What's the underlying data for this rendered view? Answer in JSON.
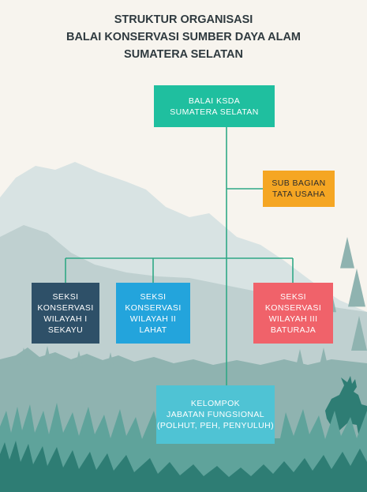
{
  "title": {
    "line1": "STRUKTUR ORGANISASI",
    "line2": "BALAI KONSERVASI SUMBER DAYA ALAM",
    "line3": "SUMATERA SELATAN"
  },
  "nodes": {
    "head": {
      "lines": [
        "BALAI KSDA",
        "SUMATERA SELATAN"
      ],
      "color": "#1fbf9f"
    },
    "sub_bagian": {
      "lines": [
        "SUB BAGIAN",
        "TATA USAHA"
      ],
      "color": "#f5a623"
    },
    "seksi_1": {
      "lines": [
        "SEKSI",
        "KONSERVASI",
        "WILAYAH I",
        "SEKAYU"
      ],
      "color": "#2e5068"
    },
    "seksi_2": {
      "lines": [
        "SEKSI",
        "KONSERVASI",
        "WILAYAH II",
        "LAHAT"
      ],
      "color": "#23a4dc"
    },
    "seksi_3": {
      "lines": [
        "SEKSI",
        "KONSERVASI",
        "WILAYAH III",
        "BATURAJA"
      ],
      "color": "#f0626a"
    },
    "fungsional": {
      "lines": [
        "KELOMPOK",
        "JABATAN FUNGSIONAL",
        "(POLHUT, PEH, PENYULUH)"
      ],
      "color": "#4fc3d4"
    }
  },
  "colors": {
    "connector": "#2fa886",
    "background": "#f7f4ee",
    "mountain_far": "#d8e3e3",
    "mountain_near": "#bfd0d0",
    "forest": "#8fb3b0",
    "grass_dark": "#2e7d74",
    "grass_light": "#5fa39b"
  }
}
